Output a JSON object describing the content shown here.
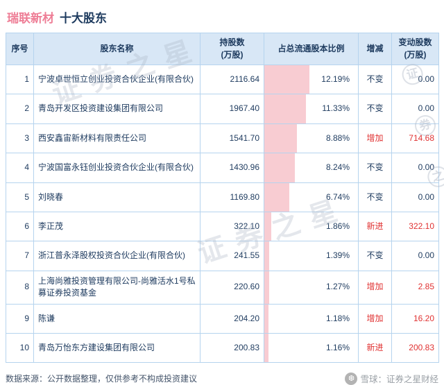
{
  "title": {
    "stock": "瑞联新材",
    "section": "十大股东"
  },
  "table": {
    "headers": [
      "序号",
      "股东名称",
      "持股数\n(万股)",
      "占总流通股本比例",
      "增减",
      "变动股数\n(万股)"
    ],
    "rows": [
      {
        "index": "1",
        "name": "宁波卓世恒立创业投资合伙企业(有限合伙)",
        "shares": "2116.64",
        "pct_label": "12.19%",
        "pct_value": 12.19,
        "change": "不变",
        "change_type": "same",
        "delta": "0.00"
      },
      {
        "index": "2",
        "name": "青岛开发区投资建设集团有限公司",
        "shares": "1967.40",
        "pct_label": "11.33%",
        "pct_value": 11.33,
        "change": "不变",
        "change_type": "same",
        "delta": "0.00"
      },
      {
        "index": "3",
        "name": "西安鑫宙新材料有限责任公司",
        "shares": "1541.70",
        "pct_label": "8.88%",
        "pct_value": 8.88,
        "change": "增加",
        "change_type": "up",
        "delta": "714.68"
      },
      {
        "index": "4",
        "name": "宁波国富永钰创业投资合伙企业(有限合伙)",
        "shares": "1430.96",
        "pct_label": "8.24%",
        "pct_value": 8.24,
        "change": "不变",
        "change_type": "same",
        "delta": "0.00"
      },
      {
        "index": "5",
        "name": "刘晓春",
        "shares": "1169.80",
        "pct_label": "6.74%",
        "pct_value": 6.74,
        "change": "不变",
        "change_type": "same",
        "delta": "0.00"
      },
      {
        "index": "6",
        "name": "李正茂",
        "shares": "322.10",
        "pct_label": "1.86%",
        "pct_value": 1.86,
        "change": "新进",
        "change_type": "new",
        "delta": "322.10"
      },
      {
        "index": "7",
        "name": "浙江普永泽股权投资合伙企业(有限合伙)",
        "shares": "241.55",
        "pct_label": "1.39%",
        "pct_value": 1.39,
        "change": "不变",
        "change_type": "same",
        "delta": "0.00"
      },
      {
        "index": "8",
        "name": "上海尚雅投资管理有限公司-尚雅活水1号私募证券投资基金",
        "shares": "220.60",
        "pct_label": "1.27%",
        "pct_value": 1.27,
        "change": "增加",
        "change_type": "up",
        "delta": "2.85"
      },
      {
        "index": "9",
        "name": "陈谦",
        "shares": "204.20",
        "pct_label": "1.18%",
        "pct_value": 1.18,
        "change": "增加",
        "change_type": "up",
        "delta": "16.20"
      },
      {
        "index": "10",
        "name": "青岛万怡东方建设集团有限公司",
        "shares": "200.83",
        "pct_label": "1.16%",
        "pct_value": 1.16,
        "change": "新进",
        "change_type": "new",
        "delta": "200.83"
      }
    ]
  },
  "footer": {
    "source": "数据来源：公开数据整理，仅供参考不构成投资建议",
    "brand_logo": "❆",
    "brand": "雪球：证券之星财经"
  },
  "watermark": {
    "text": "证券之星",
    "side_chars": [
      "证",
      "券",
      "之"
    ]
  },
  "colors": {
    "title_pink": "#ee7e96",
    "navy": "#1d3a5e",
    "red": "#e03131",
    "header_bg": "#d8e7f6",
    "border": "#b5d3ee",
    "bar_pink": "#f8ccd2"
  },
  "chart_data": {
    "type": "table",
    "title": "瑞联新材 十大股东",
    "columns": [
      "序号",
      "股东名称",
      "持股数(万股)",
      "占总流通股本比例",
      "增减",
      "变动股数(万股)"
    ],
    "rows": [
      [
        "1",
        "宁波卓世恒立创业投资合伙企业(有限合伙)",
        2116.64,
        "12.19%",
        "不变",
        0.0
      ],
      [
        "2",
        "青岛开发区投资建设集团有限公司",
        1967.4,
        "11.33%",
        "不变",
        0.0
      ],
      [
        "3",
        "西安鑫宙新材料有限责任公司",
        1541.7,
        "8.88%",
        "增加",
        714.68
      ],
      [
        "4",
        "宁波国富永钰创业投资合伙企业(有限合伙)",
        1430.96,
        "8.24%",
        "不变",
        0.0
      ],
      [
        "5",
        "刘晓春",
        1169.8,
        "6.74%",
        "不变",
        0.0
      ],
      [
        "6",
        "李正茂",
        322.1,
        "1.86%",
        "新进",
        322.1
      ],
      [
        "7",
        "浙江普永泽股权投资合伙企业(有限合伙)",
        241.55,
        "1.39%",
        "不变",
        0.0
      ],
      [
        "8",
        "上海尚雅投资管理有限公司-尚雅活水1号私募证券投资基金",
        220.6,
        "1.27%",
        "增加",
        2.85
      ],
      [
        "9",
        "陈谦",
        204.2,
        "1.18%",
        "增加",
        16.2
      ],
      [
        "10",
        "青岛万怡东方建设集团有限公司",
        200.83,
        "1.16%",
        "新进",
        200.83
      ]
    ]
  }
}
